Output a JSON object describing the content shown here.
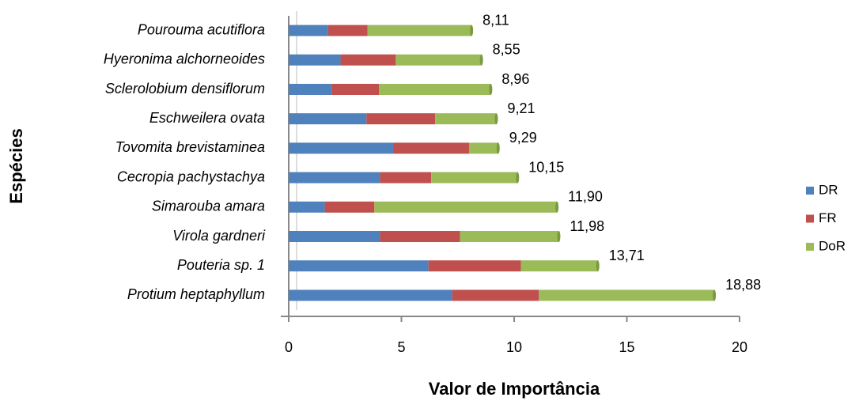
{
  "chart_data": {
    "type": "stacked-barh",
    "xlabel": "Valor de Importância",
    "ylabel": "Espécies",
    "categories": [
      "Protium heptaphyllum",
      "Pouteria sp. 1",
      "Virola gardneri",
      "Simarouba amara",
      "Cecropia pachystachya",
      "Tovomita brevistaminea ",
      "Eschweilera ovata",
      "Sclerolobium densiflorum",
      "Hyeronima alchorneoides",
      "Pourouma acutiflora"
    ],
    "series": [
      {
        "name": "DR",
        "color": "#4f81bd",
        "values": [
          7.25,
          6.2,
          4.05,
          1.6,
          4.05,
          4.63,
          3.45,
          1.9,
          2.3,
          1.75
        ]
      },
      {
        "name": "FR",
        "color": "#c0504d",
        "values": [
          3.85,
          4.1,
          3.55,
          2.2,
          2.27,
          3.37,
          3.05,
          2.1,
          2.45,
          1.75
        ]
      },
      {
        "name": "DoR",
        "color": "#9bbb59",
        "values": [
          7.78,
          3.41,
          4.38,
          8.1,
          3.83,
          1.29,
          2.71,
          4.96,
          3.8,
          4.61
        ]
      }
    ],
    "totals": [
      18.88,
      13.71,
      11.98,
      11.9,
      10.15,
      9.29,
      9.21,
      8.96,
      8.55,
      8.11
    ],
    "value_labels": [
      "18,88",
      "13,71",
      "11,98",
      "11,90",
      "10,15",
      "9,29",
      "9,21",
      "8,96",
      "8,55",
      "8,11"
    ],
    "xlim": [
      0,
      20
    ],
    "xticks": [
      0,
      5,
      10,
      15,
      20
    ],
    "legend": "right"
  }
}
